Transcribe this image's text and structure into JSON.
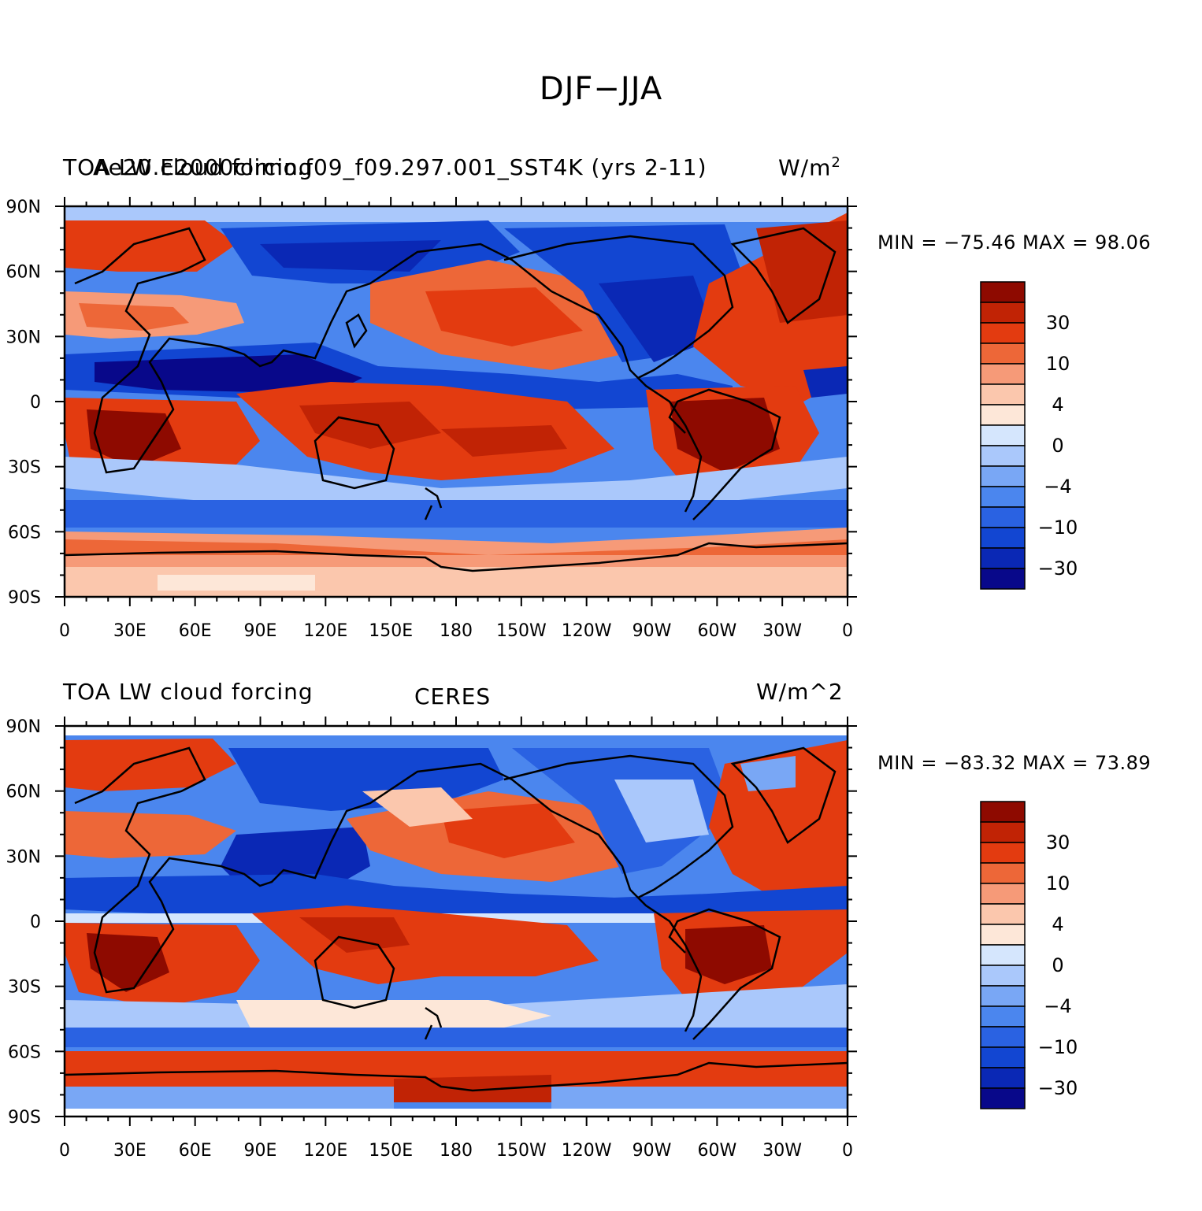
{
  "figure": {
    "title": "DJF−JJA"
  },
  "colors": [
    "#08088a",
    "#0a28b5",
    "#1246d2",
    "#2a62e2",
    "#4b86ee",
    "#79a7f5",
    "#aac8fb",
    "#d5e6fd",
    "#fde7d8",
    "#fbc7ad",
    "#f69a78",
    "#ed6738",
    "#e33b10",
    "#c12305",
    "#8e0a00"
  ],
  "colorbar": {
    "labels": [
      "30",
      "10",
      "4",
      "0",
      "−4",
      "−10",
      "−30"
    ]
  },
  "lat_labels": [
    "90N",
    "60N",
    "30N",
    "0",
    "30S",
    "60S",
    "90S"
  ],
  "lon_labels": [
    "0",
    "30E",
    "60E",
    "90E",
    "120E",
    "150E",
    "180",
    "150W",
    "120W",
    "90W",
    "60W",
    "30W",
    "0"
  ],
  "panels": [
    {
      "left": "TOA LW cloud forcing",
      "overprint": "Ae20.E2000climo.f09_f09.297.001_SST4K (yrs 2-11)",
      "right": "W/m",
      "right_sup": "2",
      "center": "",
      "stats": "MIN = −75.46  MAX =  98.06"
    },
    {
      "left": "TOA LW cloud forcing",
      "overprint": "",
      "right": "W/m^2",
      "right_sup": "",
      "center": "CERES",
      "stats": "MIN = −83.32  MAX =  73.89"
    }
  ]
}
